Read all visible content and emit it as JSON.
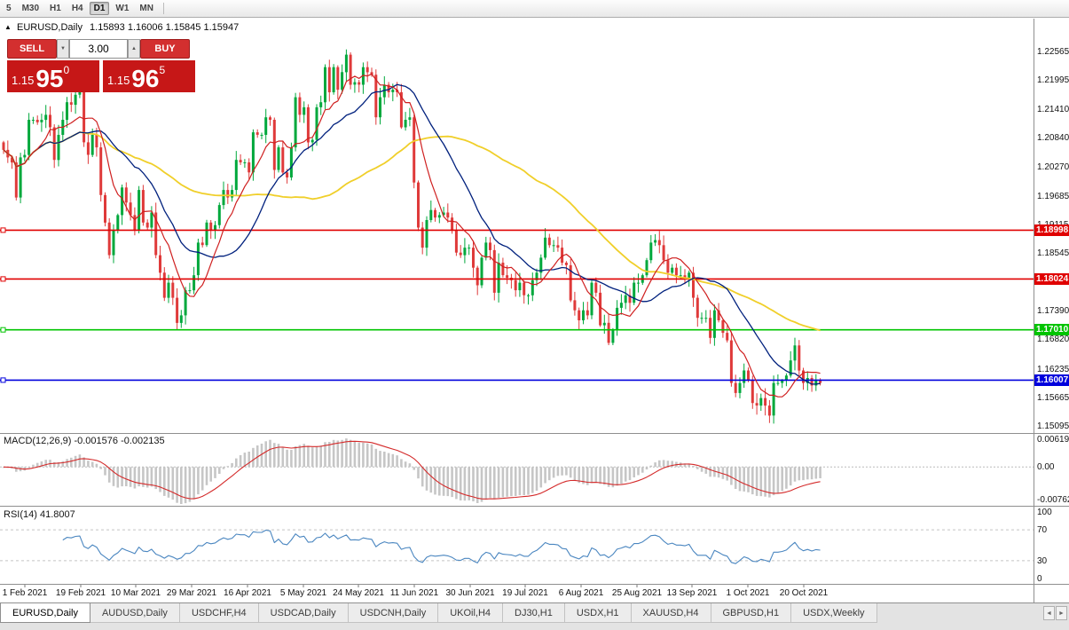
{
  "toolbar": {
    "timeframes": [
      "5",
      "M30",
      "H1",
      "H4",
      "D1",
      "W1",
      "MN"
    ],
    "active": "D1"
  },
  "chart_header": {
    "collapse_icon": "▲",
    "symbol_title": "EURUSD,Daily",
    "ohlc": "1.15893 1.16006 1.15845 1.15947"
  },
  "trade_panel": {
    "sell_label": "SELL",
    "buy_label": "BUY",
    "lot_value": "3.00",
    "lot_down_icon": "▼",
    "lot_up_icon": "▲",
    "sell_price": {
      "prefix": "1.15",
      "big": "95",
      "sup": "0"
    },
    "buy_price": {
      "prefix": "1.15",
      "big": "96",
      "sup": "5"
    },
    "colors": {
      "button": "#d32f2f",
      "price_box": "#c61717"
    }
  },
  "price_axis": {
    "labels": [
      {
        "text": "1.22565",
        "value": 1.22565
      },
      {
        "text": "1.21995",
        "value": 1.21995
      },
      {
        "text": "1.21410",
        "value": 1.2141
      },
      {
        "text": "1.20840",
        "value": 1.2084
      },
      {
        "text": "1.20270",
        "value": 1.2027
      },
      {
        "text": "1.19685",
        "value": 1.19685
      },
      {
        "text": "1.19115",
        "value": 1.19115
      },
      {
        "text": "1.18545",
        "value": 1.18545
      },
      {
        "text": "1.17960",
        "value": 1.1796
      },
      {
        "text": "1.17390",
        "value": 1.1739
      },
      {
        "text": "1.16820",
        "value": 1.1682
      },
      {
        "text": "1.16235",
        "value": 1.16235
      },
      {
        "text": "1.15665",
        "value": 1.15665
      },
      {
        "text": "1.15095",
        "value": 1.15095
      }
    ]
  },
  "hlines": [
    {
      "price": 1.18998,
      "label": "1.18998",
      "color": "#e00000"
    },
    {
      "price": 1.18024,
      "label": "1.18024",
      "color": "#e00000"
    },
    {
      "price": 1.1701,
      "label": "1.17010",
      "color": "#00c400"
    },
    {
      "price": 1.16007,
      "label": "1.16007",
      "color": "#0000dd"
    }
  ],
  "macd": {
    "header": "MACD(12,26,9) -0.001576 -0.002135",
    "scale": [
      {
        "text": "0.006193",
        "value": 0.006193
      },
      {
        "text": "0.00",
        "value": 0
      },
      {
        "text": "-0.00762",
        "value": -0.00762
      }
    ]
  },
  "rsi": {
    "header": "RSI(14) 41.8007",
    "scale": [
      {
        "text": "100",
        "value": 100
      },
      {
        "text": "70",
        "value": 70
      },
      {
        "text": "30",
        "value": 30
      },
      {
        "text": "0",
        "value": 0
      }
    ]
  },
  "date_axis": {
    "labels": [
      "1 Feb 2021",
      "19 Feb 2021",
      "10 Mar 2021",
      "29 Mar 2021",
      "16 Apr 2021",
      "5 May 2021",
      "24 May 2021",
      "11 Jun 2021",
      "30 Jun 2021",
      "19 Jul 2021",
      "6 Aug 2021",
      "25 Aug 2021",
      "13 Sep 2021",
      "1 Oct 2021",
      "20 Oct 2021"
    ]
  },
  "tabs": {
    "items": [
      "EURUSD,Daily",
      "AUDUSD,Daily",
      "USDCHF,H4",
      "USDCAD,Daily",
      "USDCNH,Daily",
      "UKOil,H4",
      "DJ30,H1",
      "USDX,H1",
      "XAUUSD,H4",
      "GBPUSD,H1",
      "USDX,Weekly"
    ],
    "active": "EURUSD,Daily",
    "scroll_left_icon": "◄",
    "scroll_right_icon": "►"
  },
  "chart_data": {
    "type": "candlestick",
    "symbol": "EURUSD",
    "timeframe": "Daily",
    "price_range": {
      "max": 1.232,
      "min": 1.1497
    },
    "closes": [
      1.206,
      1.2045,
      1.2035,
      1.1965,
      1.2045,
      1.205,
      1.212,
      1.212,
      1.2115,
      1.212,
      1.213,
      1.2105,
      1.204,
      1.209,
      1.212,
      1.2155,
      1.215,
      1.217,
      1.2175,
      1.2075,
      1.205,
      1.209,
      1.2065,
      1.197,
      1.1915,
      1.185,
      1.19,
      1.193,
      1.1985,
      1.1955,
      1.193,
      1.19,
      1.198,
      1.1915,
      1.1905,
      1.1935,
      1.185,
      1.1815,
      1.1765,
      1.1795,
      1.1765,
      1.1715,
      1.173,
      1.178,
      1.178,
      1.181,
      1.1875,
      1.187,
      1.1915,
      1.19,
      1.191,
      1.195,
      1.198,
      1.1965,
      1.198,
      1.204,
      1.2035,
      1.2035,
      1.2015,
      1.2095,
      1.209,
      1.209,
      1.2125,
      1.212,
      1.202,
      1.2065,
      1.2015,
      1.2005,
      1.2065,
      1.2165,
      1.213,
      1.2145,
      1.2075,
      1.208,
      1.2145,
      1.2155,
      1.2225,
      1.2175,
      1.2225,
      1.218,
      1.2215,
      1.225,
      1.219,
      1.2195,
      1.219,
      1.2225,
      1.2215,
      1.221,
      1.2125,
      1.2165,
      1.219,
      1.2175,
      1.218,
      1.2175,
      1.2105,
      1.212,
      1.2125,
      1.1995,
      1.1905,
      1.1865,
      1.192,
      1.194,
      1.1925,
      1.193,
      1.1935,
      1.1925,
      1.19,
      1.1855,
      1.185,
      1.1865,
      1.1865,
      1.1825,
      1.179,
      1.1845,
      1.1875,
      1.186,
      1.1775,
      1.1835,
      1.181,
      1.1805,
      1.18,
      1.178,
      1.1795,
      1.177,
      1.177,
      1.18,
      1.1815,
      1.1845,
      1.1885,
      1.187,
      1.187,
      1.1865,
      1.1835,
      1.183,
      1.176,
      1.174,
      1.172,
      1.174,
      1.173,
      1.1795,
      1.1775,
      1.171,
      1.1715,
      1.1675,
      1.17,
      1.1745,
      1.1755,
      1.177,
      1.1755,
      1.1795,
      1.1795,
      1.181,
      1.184,
      1.1875,
      1.188,
      1.187,
      1.184,
      1.1815,
      1.1825,
      1.181,
      1.181,
      1.1805,
      1.1815,
      1.1765,
      1.1725,
      1.1725,
      1.1725,
      1.1685,
      1.174,
      1.172,
      1.1695,
      1.168,
      1.1595,
      1.1575,
      1.1595,
      1.162,
      1.16,
      1.1555,
      1.155,
      1.1565,
      1.155,
      1.153,
      1.1595,
      1.1595,
      1.16,
      1.161,
      1.164,
      1.167,
      1.162,
      1.1595,
      1.1605,
      1.159,
      1.16,
      1.1595
    ],
    "indicators": {
      "ma_fast_period": 8,
      "ma_mid_period": 20,
      "ma_slow_period": 55,
      "macd_params": [
        12,
        26,
        9
      ],
      "rsi_period": 14
    },
    "colors": {
      "candle_up": "#00a83c",
      "candle_down": "#df3a3a",
      "ma_fast": "#cf1f1f",
      "ma_mid": "#00207d",
      "ma_slow": "#f0cf2a",
      "macd_hist": "#c6c6c6",
      "macd_signal": "#d42a2a",
      "rsi_line": "#4a86c0"
    }
  }
}
